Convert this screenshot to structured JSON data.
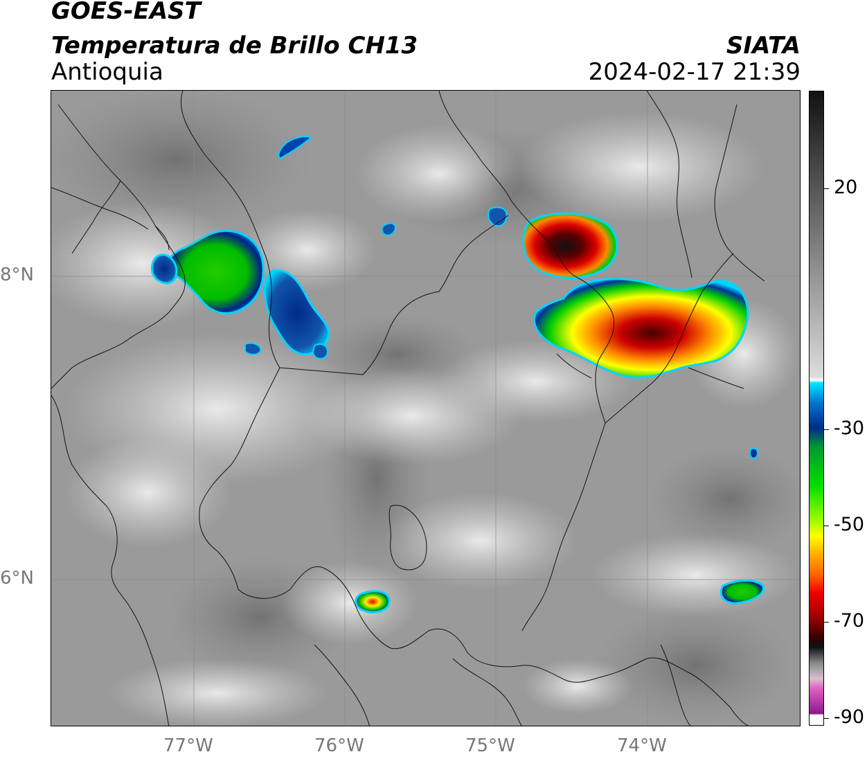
{
  "header": {
    "satellite": "GOES-EAST",
    "product": "Temperatura de Brillo CH13",
    "region": "Antioquia",
    "agency": "SIATA",
    "datetime": "2024-02-17 21:39"
  },
  "map": {
    "lat_labels": [
      "8°N",
      "6°N"
    ],
    "lon_labels": [
      "77°W",
      "76°W",
      "75°W",
      "74°W"
    ]
  },
  "colorbar": {
    "labels": [
      "20",
      "-30",
      "-50",
      "-70",
      "-90"
    ],
    "colors": {
      "cyan": "#00e5ff",
      "blue": "#003399",
      "green": "#00cc00",
      "yellow": "#ffff00",
      "orange": "#ff8800",
      "red": "#dd0000",
      "black": "#111111",
      "pink": "#e040b0",
      "purple": "#8b1a8b"
    }
  }
}
